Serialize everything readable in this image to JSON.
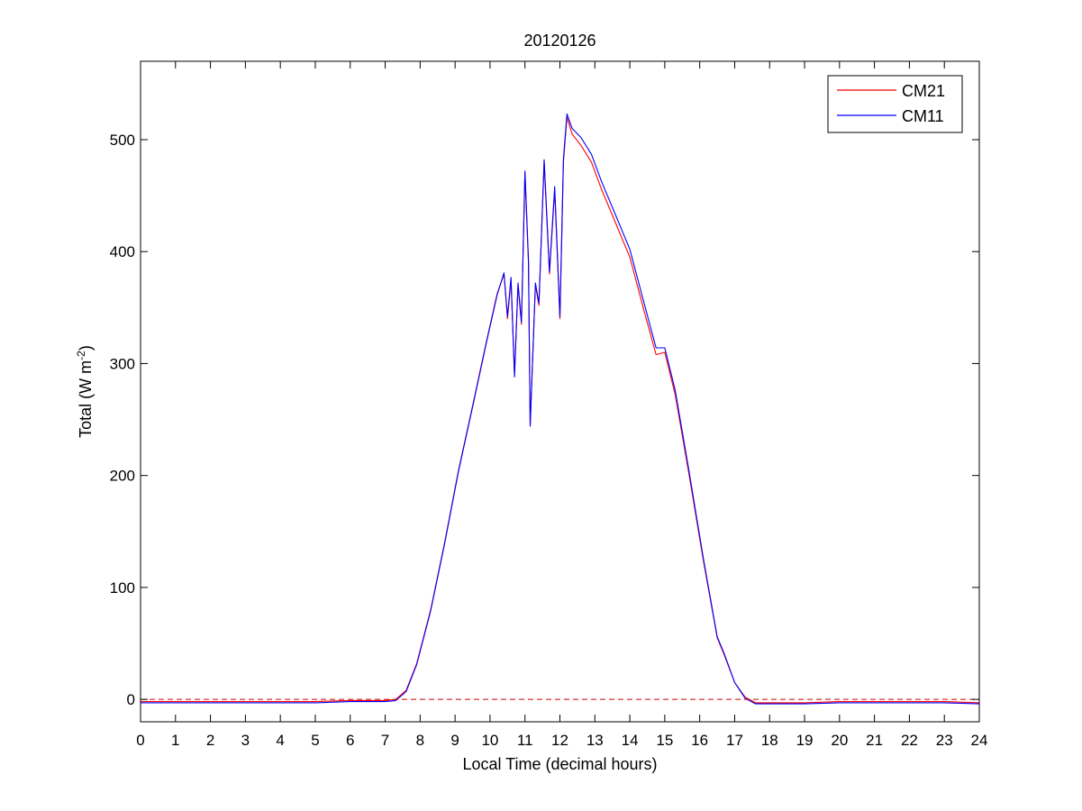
{
  "chart_data": {
    "type": "line",
    "title": "20120126",
    "xlabel": "Local Time (decimal hours)",
    "ylabel": {
      "main": "Total (W m",
      "superscript": "-2",
      "close": ")"
    },
    "xlim": [
      0,
      24
    ],
    "ylim": [
      -20,
      570
    ],
    "x_ticks": [
      0,
      1,
      2,
      3,
      4,
      5,
      6,
      7,
      8,
      9,
      10,
      11,
      12,
      13,
      14,
      15,
      16,
      17,
      18,
      19,
      20,
      21,
      22,
      23,
      24
    ],
    "y_ticks": [
      0,
      100,
      200,
      300,
      400,
      500
    ],
    "grid": false,
    "legend_position": "top-right",
    "reference_line": {
      "y": 0,
      "style": "dashed",
      "color": "#cc0000"
    },
    "series": [
      {
        "name": "CM21",
        "color": "#ff0000",
        "points": [
          [
            0,
            -2
          ],
          [
            1,
            -2
          ],
          [
            2,
            -2
          ],
          [
            3,
            -2
          ],
          [
            4,
            -2
          ],
          [
            5,
            -2
          ],
          [
            6,
            -1
          ],
          [
            7,
            -1
          ],
          [
            7.3,
            0
          ],
          [
            7.6,
            8
          ],
          [
            7.9,
            32
          ],
          [
            8.3,
            80
          ],
          [
            8.7,
            140
          ],
          [
            9.1,
            205
          ],
          [
            9.5,
            262
          ],
          [
            9.9,
            320
          ],
          [
            10.2,
            362
          ],
          [
            10.4,
            380
          ],
          [
            10.5,
            340
          ],
          [
            10.6,
            375
          ],
          [
            10.7,
            290
          ],
          [
            10.8,
            370
          ],
          [
            10.9,
            335
          ],
          [
            11.0,
            470
          ],
          [
            11.1,
            390
          ],
          [
            11.15,
            245
          ],
          [
            11.3,
            370
          ],
          [
            11.4,
            352
          ],
          [
            11.55,
            480
          ],
          [
            11.7,
            380
          ],
          [
            11.85,
            455
          ],
          [
            12.0,
            340
          ],
          [
            12.1,
            480
          ],
          [
            12.2,
            520
          ],
          [
            12.35,
            505
          ],
          [
            12.6,
            495
          ],
          [
            12.9,
            480
          ],
          [
            13.2,
            455
          ],
          [
            13.6,
            425
          ],
          [
            14.0,
            395
          ],
          [
            14.4,
            348
          ],
          [
            14.75,
            308
          ],
          [
            15.0,
            310
          ],
          [
            15.3,
            272
          ],
          [
            15.7,
            200
          ],
          [
            16.1,
            125
          ],
          [
            16.5,
            55
          ],
          [
            16.7,
            40
          ],
          [
            17.0,
            15
          ],
          [
            17.3,
            2
          ],
          [
            17.6,
            -3
          ],
          [
            18,
            -3
          ],
          [
            19,
            -3
          ],
          [
            20,
            -2
          ],
          [
            21,
            -2
          ],
          [
            22,
            -2
          ],
          [
            23,
            -2
          ],
          [
            24,
            -3
          ]
        ]
      },
      {
        "name": "CM11",
        "color": "#0000ff",
        "points": [
          [
            0,
            -3
          ],
          [
            1,
            -3
          ],
          [
            2,
            -3
          ],
          [
            3,
            -3
          ],
          [
            4,
            -3
          ],
          [
            5,
            -3
          ],
          [
            6,
            -2
          ],
          [
            7,
            -2
          ],
          [
            7.3,
            -1
          ],
          [
            7.6,
            7
          ],
          [
            7.9,
            31
          ],
          [
            8.3,
            79
          ],
          [
            8.7,
            139
          ],
          [
            9.1,
            204
          ],
          [
            9.5,
            261
          ],
          [
            9.9,
            319
          ],
          [
            10.2,
            361
          ],
          [
            10.4,
            381
          ],
          [
            10.5,
            342
          ],
          [
            10.6,
            377
          ],
          [
            10.7,
            288
          ],
          [
            10.8,
            372
          ],
          [
            10.9,
            337
          ],
          [
            11.0,
            472
          ],
          [
            11.1,
            392
          ],
          [
            11.15,
            244
          ],
          [
            11.3,
            372
          ],
          [
            11.4,
            354
          ],
          [
            11.55,
            482
          ],
          [
            11.7,
            382
          ],
          [
            11.85,
            458
          ],
          [
            12.0,
            342
          ],
          [
            12.1,
            483
          ],
          [
            12.2,
            523
          ],
          [
            12.35,
            510
          ],
          [
            12.6,
            502
          ],
          [
            12.9,
            487
          ],
          [
            13.2,
            462
          ],
          [
            13.6,
            432
          ],
          [
            14.0,
            402
          ],
          [
            14.4,
            355
          ],
          [
            14.75,
            314
          ],
          [
            15.0,
            314
          ],
          [
            15.3,
            276
          ],
          [
            15.7,
            203
          ],
          [
            16.1,
            127
          ],
          [
            16.5,
            56
          ],
          [
            16.7,
            41
          ],
          [
            17.0,
            15
          ],
          [
            17.3,
            1
          ],
          [
            17.6,
            -4
          ],
          [
            18,
            -4
          ],
          [
            19,
            -4
          ],
          [
            20,
            -3
          ],
          [
            21,
            -3
          ],
          [
            22,
            -3
          ],
          [
            23,
            -3
          ],
          [
            24,
            -4
          ]
        ]
      }
    ]
  }
}
